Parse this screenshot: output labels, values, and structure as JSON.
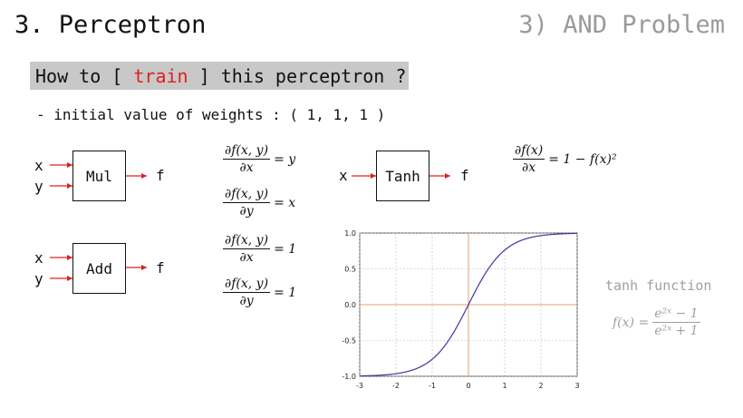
{
  "header": {
    "title": "3. Perceptron",
    "section": "3) AND Problem"
  },
  "banner": {
    "prefix": "How to [ ",
    "highlight": "train",
    "suffix": " ] this perceptron ?"
  },
  "subtitle": "- initial value of weights : ( 1, 1, 1 )",
  "mul_gate": {
    "input_x": "x",
    "input_y": "y",
    "label": "Mul",
    "output": "f"
  },
  "add_gate": {
    "input_x": "x",
    "input_y": "y",
    "label": "Add",
    "output": "f"
  },
  "tanh_gate": {
    "input_x": "x",
    "label": "Tanh",
    "output": "f"
  },
  "derivatives": [
    {
      "num": "∂f(x, y)",
      "den": "∂x",
      "rhs": "= y"
    },
    {
      "num": "∂f(x, y)",
      "den": "∂y",
      "rhs": "= x"
    },
    {
      "num": "∂f(x, y)",
      "den": "∂x",
      "rhs": "= 1"
    },
    {
      "num": "∂f(x, y)",
      "den": "∂y",
      "rhs": "= 1"
    }
  ],
  "tanh_derivative": {
    "num": "∂f(x)",
    "den": "∂x",
    "rhs": "= 1 − f(x)²"
  },
  "tanh_function": {
    "label": "tanh function",
    "lhs": "f(x) =",
    "num": "e²ˣ − 1",
    "den": "e²ˣ + 1"
  },
  "colors": {
    "arrow": "#e0201c",
    "curve": "#3a3aa0",
    "axis_highlight": "#e0a070",
    "grid": "#b8b8b8",
    "muted": "#a0a0a0"
  },
  "chart_data": {
    "type": "line",
    "function": "tanh",
    "xlim": [
      -3,
      3
    ],
    "ylim": [
      -1.0,
      1.0
    ],
    "x_ticks": [
      "-3",
      "-2",
      "-1",
      "0",
      "1",
      "2",
      "3"
    ],
    "y_ticks": [
      "1.0",
      "0.5",
      "0.0",
      "-0.5",
      "-1.0"
    ],
    "grid": true,
    "sample_x": [
      -3,
      -2.5,
      -2,
      -1.5,
      -1,
      -0.5,
      0,
      0.5,
      1,
      1.5,
      2,
      2.5,
      3
    ],
    "sample_y": [
      -0.995,
      -0.987,
      -0.964,
      -0.905,
      -0.762,
      -0.462,
      0,
      0.462,
      0.762,
      0.905,
      0.964,
      0.987,
      0.995
    ]
  }
}
